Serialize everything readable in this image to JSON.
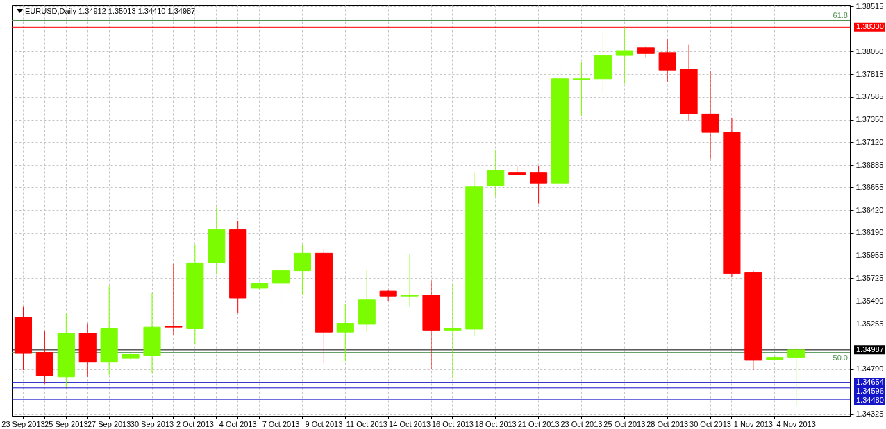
{
  "chart_data": {
    "type": "candlestick",
    "title": "EURUSD,Daily 1.34912 1.35013 1.34410 1.34987",
    "categories": [
      "23 Sep 2013",
      null,
      "25 Sep 2013",
      null,
      "27 Sep 2013",
      null,
      "30 Sep 2013",
      null,
      "2 Oct 2013",
      null,
      "4 Oct 2013",
      null,
      "7 Oct 2013",
      null,
      "9 Oct 2013",
      null,
      "11 Oct 2013",
      null,
      "14 Oct 2013",
      null,
      "16 Oct 2013",
      null,
      "18 Oct 2013",
      null,
      "21 Oct 2013",
      null,
      "23 Oct 2013",
      null,
      "25 Oct 2013",
      null,
      "28 Oct 2013",
      null,
      "30 Oct 2013",
      null,
      "1 Nov 2013",
      null,
      "4 Nov 2013"
    ],
    "ohlc": [
      [
        1.3532,
        1.3543,
        1.3478,
        1.3495
      ],
      [
        1.3496,
        1.3518,
        1.3464,
        1.3472
      ],
      [
        1.3471,
        1.3536,
        1.3461,
        1.3516
      ],
      [
        1.3516,
        1.3526,
        1.3471,
        1.3486
      ],
      [
        1.3486,
        1.3564,
        1.3473,
        1.3521
      ],
      [
        1.349,
        1.3495,
        1.3489,
        1.3494
      ],
      [
        1.3493,
        1.3557,
        1.3475,
        1.3522
      ],
      [
        1.3523,
        1.3587,
        1.3514,
        1.3522
      ],
      [
        1.3521,
        1.3607,
        1.3504,
        1.3588
      ],
      [
        1.3588,
        1.3645,
        1.3576,
        1.3622
      ],
      [
        1.3622,
        1.3631,
        1.3537,
        1.3552
      ],
      [
        1.3562,
        1.3568,
        1.356,
        1.3567
      ],
      [
        1.3567,
        1.359,
        1.3541,
        1.358
      ],
      [
        1.358,
        1.3607,
        1.3555,
        1.3598
      ],
      [
        1.3598,
        1.3602,
        1.3485,
        1.3517
      ],
      [
        1.3517,
        1.3546,
        1.3487,
        1.3526
      ],
      [
        1.3525,
        1.3581,
        1.3517,
        1.355
      ],
      [
        1.3559,
        1.356,
        1.3549,
        1.3554
      ],
      [
        1.3554,
        1.3597,
        1.3543,
        1.3555
      ],
      [
        1.3555,
        1.357,
        1.3479,
        1.3519
      ],
      [
        1.3519,
        1.3566,
        1.347,
        1.3521
      ],
      [
        1.352,
        1.3681,
        1.3513,
        1.3666
      ],
      [
        1.3667,
        1.3704,
        1.3656,
        1.3683
      ],
      [
        1.3681,
        1.3687,
        1.3678,
        1.3679
      ],
      [
        1.3681,
        1.3688,
        1.3649,
        1.367
      ],
      [
        1.367,
        1.3792,
        1.3661,
        1.3777
      ],
      [
        1.3776,
        1.3794,
        1.3739,
        1.3777
      ],
      [
        1.3777,
        1.3824,
        1.3763,
        1.3801
      ],
      [
        1.3801,
        1.383,
        1.3772,
        1.3806
      ],
      [
        1.3809,
        1.381,
        1.3799,
        1.3803
      ],
      [
        1.3804,
        1.3818,
        1.3774,
        1.3786
      ],
      [
        1.3787,
        1.3812,
        1.3734,
        1.3741
      ],
      [
        1.3741,
        1.3785,
        1.3695,
        1.3722
      ],
      [
        1.3722,
        1.3737,
        1.3574,
        1.3577
      ],
      [
        1.3578,
        1.358,
        1.3478,
        1.3488
      ],
      [
        1.3489,
        1.3493,
        1.3488,
        1.3491
      ],
      [
        1.34912,
        1.35013,
        1.3441,
        1.34987
      ]
    ],
    "colors": [
      "#ff0000",
      "#ff0000",
      "#7cfc00",
      "#ff0000",
      "#7cfc00",
      "#7cfc00",
      "#7cfc00",
      "#ff0000",
      "#7cfc00",
      "#7cfc00",
      "#ff0000",
      "#7cfc00",
      "#7cfc00",
      "#7cfc00",
      "#ff0000",
      "#7cfc00",
      "#7cfc00",
      "#ff0000",
      "#7cfc00",
      "#ff0000",
      "#7cfc00",
      "#7cfc00",
      "#7cfc00",
      "#ff0000",
      "#ff0000",
      "#7cfc00",
      "#7cfc00",
      "#7cfc00",
      "#7cfc00",
      "#ff0000",
      "#ff0000",
      "#ff0000",
      "#ff0000",
      "#ff0000",
      "#ff0000",
      "#7cfc00",
      "#7cfc00"
    ],
    "ylim": [
      1.3431,
      1.3853
    ],
    "yticks": [
      1.38515,
      {
        "value": 1.3805,
        "label": "1.38050"
      },
      1.37815,
      1.37585,
      {
        "value": 1.3735,
        "label": "1.37350"
      },
      {
        "value": 1.3712,
        "label": "1.37120"
      },
      1.36885,
      1.36655,
      {
        "value": 1.3642,
        "label": "1.36420"
      },
      {
        "value": 1.3619,
        "label": "1.36190"
      },
      1.35955,
      1.35725,
      {
        "value": 1.3549,
        "label": "1.35490"
      },
      1.35255,
      {
        "value": 1.35025,
        "label": null
      },
      {
        "value": 1.3479,
        "label": "1.34790"
      },
      {
        "value": 1.3456,
        "label": null
      },
      1.34325
    ],
    "grid": true,
    "ref_lines": [
      {
        "axis": "y",
        "value": 1.3837,
        "color": "#4e8f4e"
      },
      {
        "axis": "y",
        "value": 1.383,
        "label": "1.38300",
        "color": "#ff0000"
      },
      {
        "axis": "y",
        "value": 1.34987,
        "label": "1.34987",
        "color": "#000000"
      },
      {
        "axis": "y",
        "value": 1.3496,
        "color": "#4e8f4e"
      },
      {
        "axis": "y",
        "value": 1.34654,
        "label": "1.34654",
        "color": "#1414c8"
      },
      {
        "axis": "y",
        "value": 1.34596,
        "label": "1.34596",
        "color": "#1414c8"
      },
      {
        "axis": "y",
        "value": 1.3448,
        "label": "1.34480",
        "color": "#1414c8"
      }
    ],
    "annotations": [
      {
        "text": "61.8",
        "y": 1.3837
      },
      {
        "text": "50.0",
        "y": 1.3496
      }
    ]
  }
}
